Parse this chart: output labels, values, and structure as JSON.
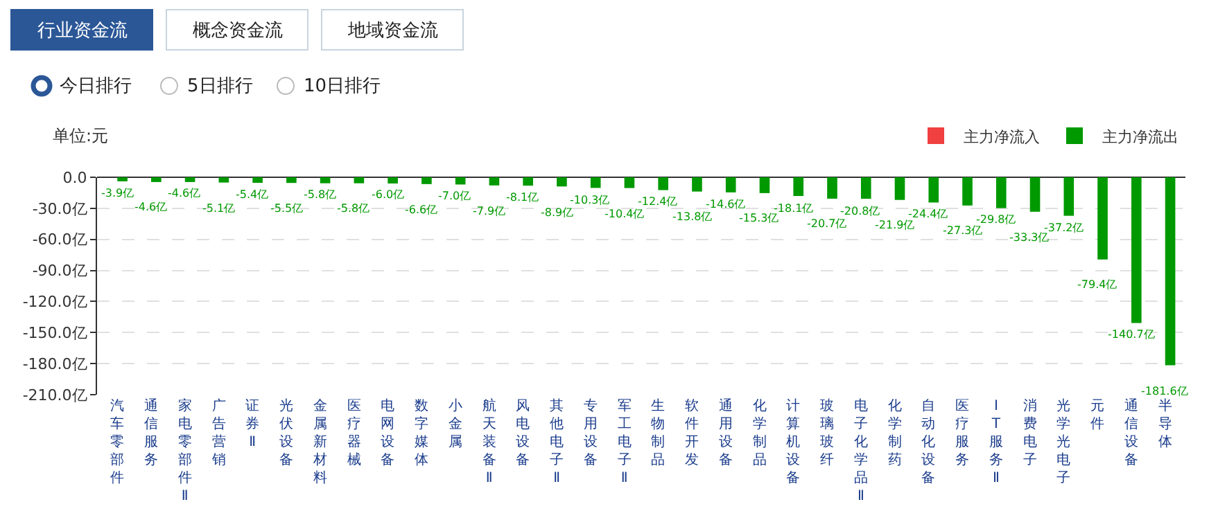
{
  "chart_data": {
    "type": "bar",
    "ylabel": "单位:元",
    "annotations": [
      "行业资金流",
      "概念资金流",
      "地域资金流",
      "今日排行",
      "5日排行",
      "10日排行"
    ],
    "categories": [
      "汽车零部件",
      "通信服务",
      "家电零部件Ⅱ",
      "广告营销",
      "证券Ⅱ",
      "光伏设备",
      "金属新材料",
      "医疗器械",
      "电网设备",
      "数字媒体",
      "小金属",
      "航天装备Ⅱ",
      "风电设备",
      "其他电子Ⅱ",
      "专用设备",
      "军工电子Ⅱ",
      "生物制品",
      "软件开发",
      "通用设备",
      "化学制品",
      "计算机设备",
      "玻璃玻纤",
      "电子化学品Ⅱ",
      "化学制药",
      "自动化设备",
      "医疗服务",
      "IT服务Ⅱ",
      "消费电子",
      "光学光电子",
      "元件",
      "通信设备",
      "半导体"
    ],
    "series": [
      {
        "name": "主力净流入",
        "color": "#f04040",
        "values": [
          null,
          null,
          null,
          null,
          null,
          null,
          null,
          null,
          null,
          null,
          null,
          null,
          null,
          null,
          null,
          null,
          null,
          null,
          null,
          null,
          null,
          null,
          null,
          null,
          null,
          null,
          null,
          null,
          null,
          null,
          null,
          null
        ]
      },
      {
        "name": "主力净流出",
        "color": "#009900",
        "values": [
          -3.9,
          -4.6,
          -4.6,
          -5.1,
          -5.4,
          -5.5,
          -5.8,
          -5.8,
          -6.0,
          -6.6,
          -7.0,
          -7.9,
          -8.1,
          -8.9,
          -10.3,
          -10.4,
          -12.4,
          -13.8,
          -14.6,
          -15.3,
          -18.1,
          -20.7,
          -20.8,
          -21.9,
          -24.4,
          -27.3,
          -29.8,
          -33.3,
          -37.2,
          -79.4,
          -140.7,
          -181.6
        ],
        "value_labels": [
          "-3.9亿",
          "-4.6亿",
          "-4.6亿",
          "-5.1亿",
          "-5.4亿",
          "-5.5亿",
          "-5.8亿",
          "-5.8亿",
          "-6.0亿",
          "-6.6亿",
          "-7.0亿",
          "-7.9亿",
          "-8.1亿",
          "-8.9亿",
          "-10.3亿",
          "-10.4亿",
          "-12.4亿",
          "-13.8亿",
          "-14.6亿",
          "-15.3亿",
          "-18.1亿",
          "-20.7亿",
          "-20.8亿",
          "-21.9亿",
          "-24.4亿",
          "-27.3亿",
          "-29.8亿",
          "-33.3亿",
          "-37.2亿",
          "-79.4亿",
          "-140.7亿",
          "-181.6亿"
        ]
      }
    ],
    "ylim": [
      -210,
      0
    ],
    "yticks": [
      {
        "value": 0,
        "label": "0.0"
      },
      {
        "value": -30,
        "label": "-30.0亿"
      },
      {
        "value": -60,
        "label": "-60.0亿"
      },
      {
        "value": -90,
        "label": "-90.0亿"
      },
      {
        "value": -120,
        "label": "-120.0亿"
      },
      {
        "value": -150,
        "label": "-150.0亿"
      },
      {
        "value": -180,
        "label": "-180.0亿"
      },
      {
        "value": -210,
        "label": "-210.0亿"
      }
    ],
    "grid": "y",
    "legend": "top right"
  }
}
